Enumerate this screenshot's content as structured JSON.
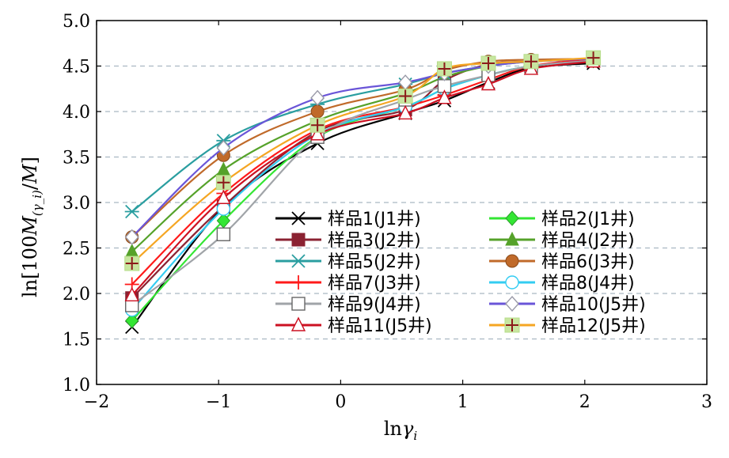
{
  "chart_data": {
    "type": "line",
    "title": "",
    "xlabel": "lnγ_i",
    "ylabel": "ln[100M_(γ_i)/M]",
    "xlabel_parts": {
      "base": "ln",
      "var": "γ",
      "sub": "i"
    },
    "ylabel_parts": {
      "pre": "ln[100",
      "var": "M",
      "sub": "(γ_i)",
      "post": "/",
      "var2": "M",
      "close": "]"
    },
    "xlim": [
      -2,
      3
    ],
    "ylim": [
      1.0,
      5.0
    ],
    "x_ticks": [
      -2,
      -1,
      0,
      1,
      2,
      3
    ],
    "x_tick_labels": [
      "−2",
      "−1",
      "0",
      "1",
      "2",
      "3"
    ],
    "y_ticks": [
      1.0,
      1.5,
      2.0,
      2.5,
      3.0,
      3.5,
      4.0,
      4.5,
      5.0
    ],
    "y_tick_labels": [
      "1.0",
      "1.5",
      "2.0",
      "2.5",
      "3.0",
      "3.5",
      "4.0",
      "4.5",
      "5.0"
    ],
    "grid": "horizontal dashed",
    "legend_position": "lower-right inside",
    "x": [
      -1.71,
      -0.96,
      -0.19,
      0.53,
      0.85,
      1.21,
      1.56,
      2.07
    ],
    "series": [
      {
        "name": "样品1(J1井)",
        "color": "#000000",
        "marker": "x",
        "values": [
          1.63,
          2.95,
          3.65,
          3.98,
          4.12,
          4.32,
          4.48,
          4.53
        ]
      },
      {
        "name": "样品2(J1井)",
        "color": "#33e633",
        "marker": "diamond-filled",
        "values": [
          1.7,
          2.8,
          3.72,
          4.05,
          4.25,
          4.4,
          4.5,
          4.56
        ]
      },
      {
        "name": "样品3(J2井)",
        "color": "#8b2232",
        "marker": "square-filled",
        "values": [
          1.95,
          2.96,
          3.78,
          4.02,
          4.34,
          4.52,
          4.55,
          4.58
        ]
      },
      {
        "name": "样品4(J2井)",
        "color": "#55a22a",
        "marker": "triangle-filled",
        "values": [
          2.46,
          3.36,
          3.9,
          4.2,
          4.38,
          4.5,
          4.55,
          4.58
        ]
      },
      {
        "name": "样品5(J2井)",
        "color": "#2a9ea0",
        "marker": "asterisk",
        "values": [
          2.9,
          3.68,
          4.08,
          4.3,
          4.42,
          4.5,
          4.55,
          4.58
        ]
      },
      {
        "name": "样品6(J3井)",
        "color": "#c06a2a",
        "marker": "circle-filled",
        "values": [
          2.62,
          3.52,
          4.0,
          4.24,
          4.45,
          4.55,
          4.57,
          4.58
        ]
      },
      {
        "name": "样品7(J3井)",
        "color": "#ff1a1a",
        "marker": "plus",
        "values": [
          2.1,
          3.1,
          3.8,
          4.05,
          4.18,
          4.35,
          4.5,
          4.58
        ]
      },
      {
        "name": "样品8(J4井)",
        "color": "#33ccf2",
        "marker": "circle-open",
        "values": [
          1.82,
          2.93,
          3.75,
          4.05,
          4.25,
          4.4,
          4.5,
          4.56
        ]
      },
      {
        "name": "样品9(J4井)",
        "color": "#a0a4a8",
        "marker": "square-open",
        "values": [
          1.87,
          2.65,
          3.72,
          4.13,
          4.28,
          4.4,
          4.5,
          4.56
        ]
      },
      {
        "name": "样品10(J5井)",
        "color": "#6a55d8",
        "marker": "diamond-open",
        "values": [
          2.62,
          3.6,
          4.15,
          4.32,
          4.42,
          4.5,
          4.55,
          4.58
        ]
      },
      {
        "name": "样品11(J5井)",
        "color": "#cc1122",
        "marker": "triangle-open",
        "values": [
          1.98,
          3.05,
          3.75,
          3.98,
          4.15,
          4.3,
          4.47,
          4.55
        ]
      },
      {
        "name": "样品12(J5井)",
        "color": "#f5a623",
        "marker": "square-plus",
        "values": [
          2.33,
          3.22,
          3.85,
          4.17,
          4.47,
          4.53,
          4.55,
          4.59
        ]
      }
    ]
  }
}
